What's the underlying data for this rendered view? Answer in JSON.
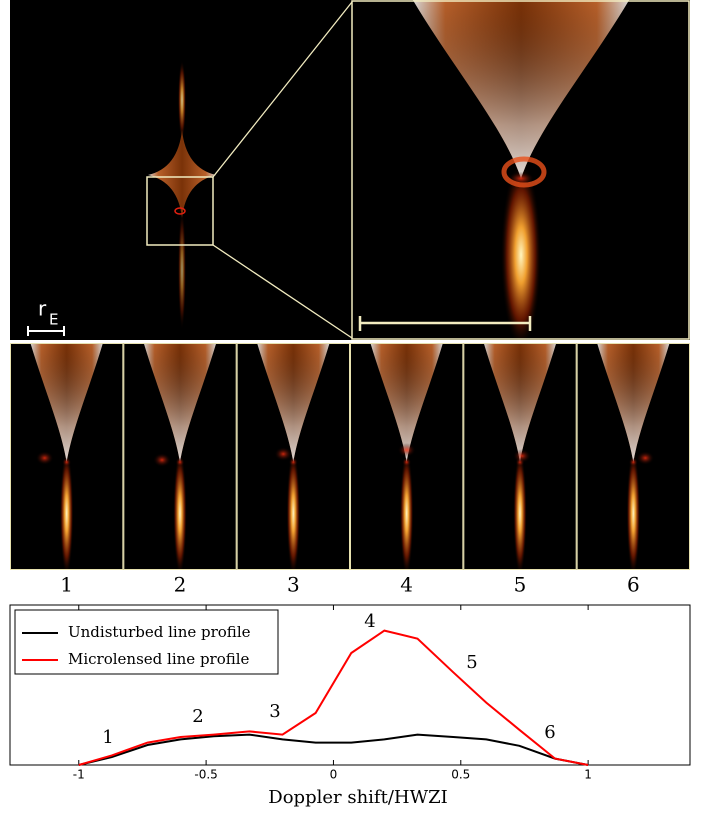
{
  "chart_data": {
    "type": "line",
    "scale_label": {
      "main": "r",
      "sub": "E"
    },
    "panels": [
      "1",
      "2",
      "3",
      "4",
      "5",
      "6"
    ],
    "xlabel": "Doppler shift/HWZI",
    "x": [
      -1,
      -0.87,
      -0.73,
      -0.6,
      -0.47,
      -0.33,
      -0.2,
      -0.07,
      0.07,
      0.2,
      0.33,
      0.47,
      0.6,
      0.73,
      0.87,
      1
    ],
    "series": [
      {
        "name": "Undisturbed line profile",
        "color": "#000000",
        "values": [
          0,
          0.05,
          0.125,
          0.16,
          0.18,
          0.19,
          0.16,
          0.14,
          0.14,
          0.16,
          0.19,
          0.175,
          0.16,
          0.12,
          0.04,
          0
        ]
      },
      {
        "name": "Microlensed line profile",
        "color": "#ff0000",
        "values": [
          0,
          0.06,
          0.14,
          0.175,
          0.19,
          0.21,
          0.19,
          0.325,
          0.7,
          0.84,
          0.79,
          0.58,
          0.39,
          0.22,
          0.04,
          0
        ]
      }
    ],
    "annotations": [
      "1",
      "2",
      "3",
      "4",
      "5",
      "6"
    ],
    "xlim": [
      -1.27,
      1.4
    ],
    "ylim": [
      0,
      1
    ],
    "xticks": [
      -1,
      -0.5,
      0,
      0.5,
      1
    ],
    "legend": "upper left"
  }
}
